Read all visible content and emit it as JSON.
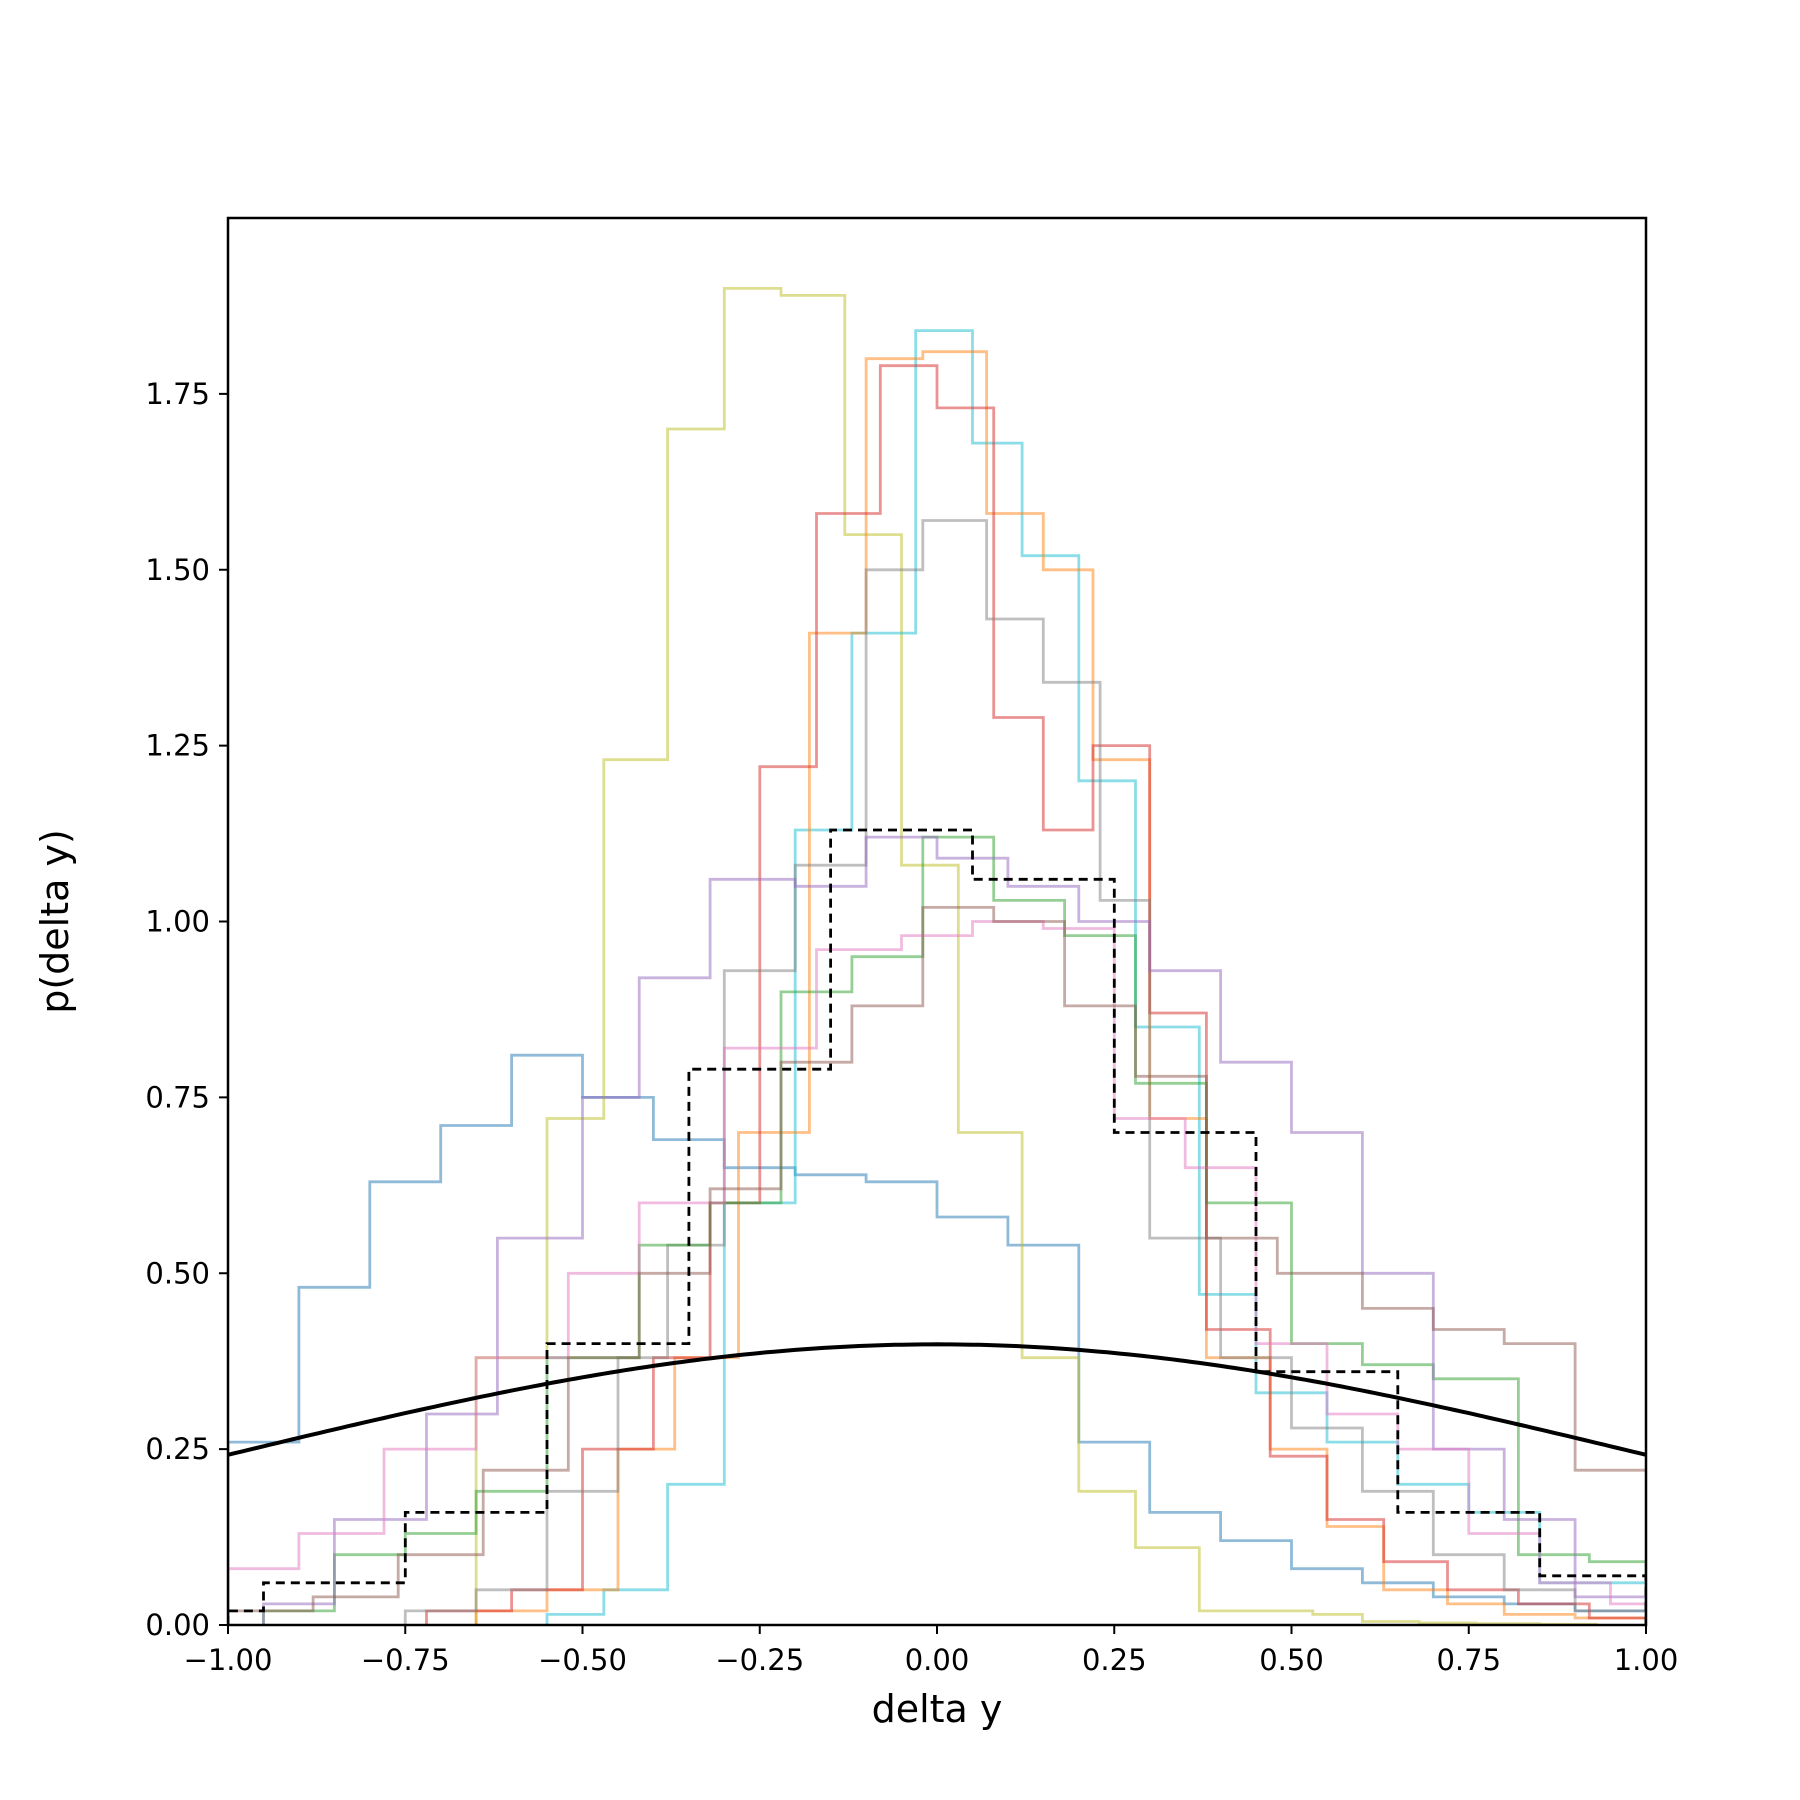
{
  "chart_data": {
    "type": "line",
    "xlabel": "delta y",
    "ylabel": "p(delta y)",
    "xlim": [
      -1.0,
      1.0
    ],
    "ylim": [
      0.0,
      2.0
    ],
    "xticks": [
      "−1.00",
      "−0.75",
      "−0.50",
      "−0.25",
      "0.00",
      "0.25",
      "0.50",
      "0.75",
      "1.00"
    ],
    "yticks": [
      "0.00",
      "0.25",
      "0.50",
      "0.75",
      "1.00",
      "1.25",
      "1.50",
      "1.75"
    ],
    "grid": false,
    "legend": "none",
    "series": [
      {
        "color": "#1f77b4",
        "style": "step-alpha",
        "edges": [
          -1.0,
          -0.9,
          -0.8,
          -0.7,
          -0.6,
          -0.5,
          -0.4,
          -0.3,
          -0.2,
          -0.1,
          0.0,
          0.1,
          0.2,
          0.3,
          0.4,
          0.5,
          0.6,
          0.7,
          0.8,
          0.9,
          1.0
        ],
        "values": [
          0.26,
          0.48,
          0.63,
          0.71,
          0.81,
          0.75,
          0.69,
          0.65,
          0.64,
          0.63,
          0.58,
          0.54,
          0.26,
          0.16,
          0.12,
          0.08,
          0.06,
          0.04,
          0.03,
          0.02
        ]
      },
      {
        "color": "#bcbd22",
        "style": "step-alpha",
        "edges": [
          -0.65,
          -0.55,
          -0.47,
          -0.38,
          -0.3,
          -0.22,
          -0.13,
          -0.05,
          0.03,
          0.12,
          0.2,
          0.28,
          0.37,
          0.45,
          0.53,
          0.6,
          0.68,
          0.76,
          0.85,
          0.93
        ],
        "values": [
          0.38,
          0.72,
          1.23,
          1.7,
          1.9,
          1.89,
          1.55,
          1.08,
          0.7,
          0.38,
          0.19,
          0.11,
          0.02,
          0.02,
          0.015,
          0.005,
          0.003,
          0.002,
          0.001
        ]
      },
      {
        "color": "#17becf",
        "style": "step-alpha",
        "edges": [
          -0.55,
          -0.47,
          -0.38,
          -0.3,
          -0.2,
          -0.12,
          -0.03,
          0.05,
          0.12,
          0.2,
          0.28,
          0.37,
          0.45,
          0.55,
          0.65,
          0.75,
          0.85,
          1.0
        ],
        "values": [
          0.015,
          0.05,
          0.2,
          0.6,
          1.13,
          1.41,
          1.84,
          1.68,
          1.52,
          1.2,
          0.85,
          0.47,
          0.33,
          0.26,
          0.2,
          0.16,
          0.06
        ]
      },
      {
        "color": "#ff7f0e",
        "style": "step-alpha",
        "edges": [
          -0.65,
          -0.55,
          -0.45,
          -0.37,
          -0.28,
          -0.18,
          -0.1,
          -0.02,
          0.07,
          0.15,
          0.22,
          0.3,
          0.38,
          0.47,
          0.55,
          0.63,
          0.72,
          0.8,
          0.9,
          1.0
        ],
        "values": [
          0.02,
          0.05,
          0.25,
          0.38,
          0.7,
          1.41,
          1.8,
          1.81,
          1.58,
          1.5,
          1.23,
          0.72,
          0.38,
          0.25,
          0.14,
          0.05,
          0.03,
          0.015,
          0.01
        ]
      },
      {
        "color": "#d62728",
        "style": "step-alpha",
        "edges": [
          -0.72,
          -0.6,
          -0.5,
          -0.4,
          -0.32,
          -0.25,
          -0.17,
          -0.08,
          0.0,
          0.08,
          0.15,
          0.22,
          0.3,
          0.38,
          0.47,
          0.55,
          0.63,
          0.72,
          0.82,
          0.92,
          1.0
        ],
        "values": [
          0.02,
          0.05,
          0.25,
          0.38,
          0.6,
          1.22,
          1.58,
          1.79,
          1.73,
          1.29,
          1.13,
          1.25,
          0.87,
          0.42,
          0.24,
          0.15,
          0.09,
          0.05,
          0.03,
          0.01
        ]
      },
      {
        "color": "#7f7f7f",
        "style": "step-alpha",
        "edges": [
          -0.75,
          -0.65,
          -0.55,
          -0.45,
          -0.38,
          -0.3,
          -0.2,
          -0.1,
          -0.02,
          0.07,
          0.15,
          0.23,
          0.3,
          0.4,
          0.5,
          0.6,
          0.7,
          0.8,
          0.9,
          1.0
        ],
        "values": [
          0.02,
          0.05,
          0.19,
          0.38,
          0.54,
          0.93,
          1.08,
          1.5,
          1.57,
          1.43,
          1.34,
          1.03,
          0.55,
          0.38,
          0.28,
          0.19,
          0.1,
          0.05,
          0.02
        ]
      },
      {
        "color": "#2ca02c",
        "style": "step-alpha",
        "edges": [
          -0.95,
          -0.85,
          -0.75,
          -0.65,
          -0.55,
          -0.42,
          -0.32,
          -0.22,
          -0.12,
          -0.02,
          0.08,
          0.18,
          0.28,
          0.38,
          0.5,
          0.6,
          0.7,
          0.82,
          0.92,
          1.0
        ],
        "values": [
          0.02,
          0.1,
          0.13,
          0.19,
          0.38,
          0.54,
          0.6,
          0.9,
          0.95,
          1.12,
          1.03,
          0.98,
          0.77,
          0.6,
          0.4,
          0.37,
          0.35,
          0.1,
          0.09
        ]
      },
      {
        "color": "#9467bd",
        "style": "step-alpha",
        "edges": [
          -0.95,
          -0.85,
          -0.72,
          -0.62,
          -0.5,
          -0.42,
          -0.32,
          -0.2,
          -0.1,
          0.0,
          0.1,
          0.2,
          0.3,
          0.4,
          0.5,
          0.6,
          0.7,
          0.8,
          0.9,
          1.0
        ],
        "values": [
          0.03,
          0.15,
          0.3,
          0.55,
          0.75,
          0.92,
          1.06,
          1.05,
          1.12,
          1.09,
          1.05,
          1.0,
          0.93,
          0.8,
          0.7,
          0.5,
          0.25,
          0.15,
          0.04,
          0.02
        ]
      },
      {
        "color": "#e377c2",
        "style": "step-alpha",
        "edges": [
          -1.0,
          -0.9,
          -0.78,
          -0.65,
          -0.52,
          -0.42,
          -0.3,
          -0.17,
          -0.05,
          0.05,
          0.15,
          0.25,
          0.35,
          0.45,
          0.55,
          0.65,
          0.75,
          0.85,
          0.95,
          1.0
        ],
        "values": [
          0.08,
          0.13,
          0.25,
          0.38,
          0.5,
          0.6,
          0.82,
          0.96,
          0.98,
          1.0,
          0.99,
          0.72,
          0.65,
          0.4,
          0.3,
          0.25,
          0.13,
          0.06,
          0.03
        ]
      },
      {
        "color": "#8c564b",
        "style": "step-alpha",
        "edges": [
          -1.0,
          -0.88,
          -0.76,
          -0.64,
          -0.52,
          -0.42,
          -0.32,
          -0.22,
          -0.12,
          -0.02,
          0.08,
          0.18,
          0.28,
          0.38,
          0.48,
          0.6,
          0.7,
          0.8,
          0.9,
          1.0
        ],
        "values": [
          0.02,
          0.04,
          0.1,
          0.22,
          0.38,
          0.5,
          0.62,
          0.8,
          0.88,
          1.02,
          1.0,
          0.88,
          0.78,
          0.55,
          0.5,
          0.45,
          0.42,
          0.4,
          0.22,
          0.22
        ]
      },
      {
        "color": "#000000",
        "style": "step-dashed",
        "edges": [
          -1.0,
          -0.95,
          -0.75,
          -0.55,
          -0.35,
          -0.15,
          0.05,
          0.25,
          0.45,
          0.65,
          0.85,
          1.0
        ],
        "values": [
          0.02,
          0.06,
          0.16,
          0.4,
          0.79,
          1.13,
          1.06,
          0.7,
          0.36,
          0.16,
          0.07
        ]
      },
      {
        "color": "#000000",
        "style": "gaussian",
        "mean": 0.0,
        "std": 1.0
      }
    ]
  }
}
